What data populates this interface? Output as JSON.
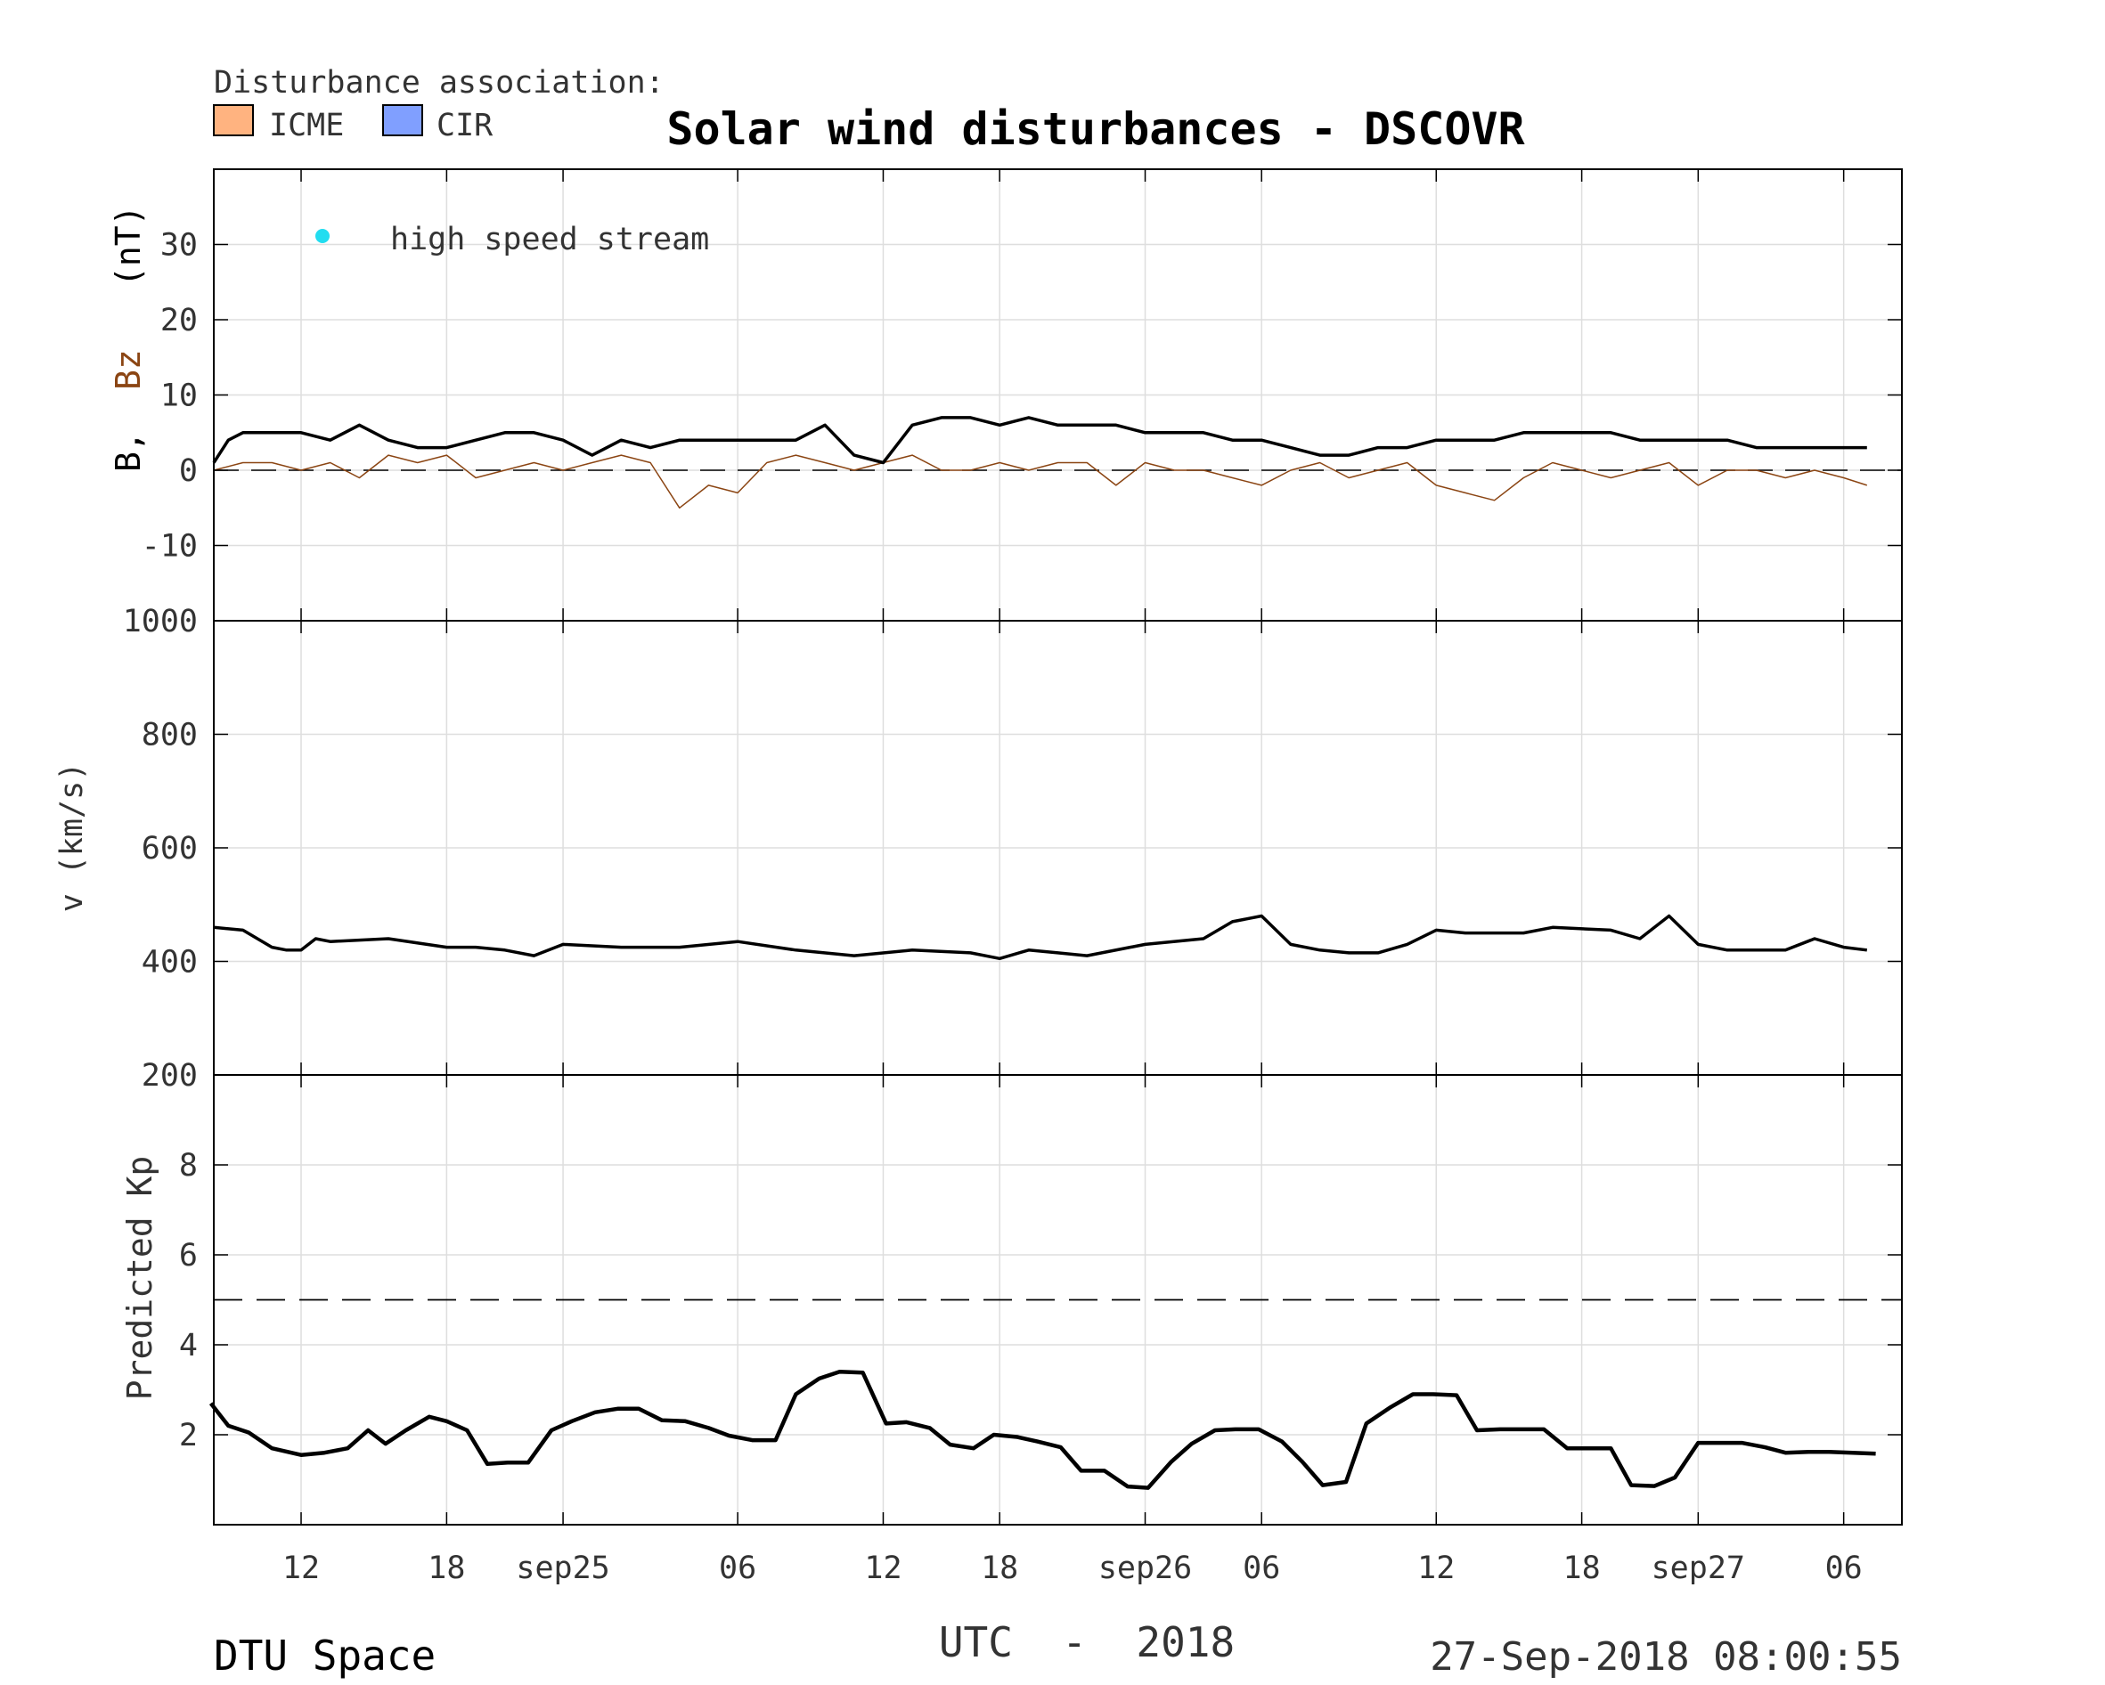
{
  "title": "Solar wind disturbances - DSCOVR",
  "legend": {
    "heading": "Disturbance association:",
    "items": [
      {
        "label": "ICME",
        "color": "#ffb380"
      },
      {
        "label": "CIR",
        "color": "#809fff"
      }
    ]
  },
  "hss_label": "high speed stream",
  "hss_color": "#22ddf0",
  "footer": {
    "left": "DTU Space",
    "center": "UTC  -  2018",
    "right": "27-Sep-2018 08:00:55"
  },
  "chart_data": [
    {
      "type": "line",
      "panel": "magnetic-field",
      "ylabel_b": "B,",
      "ylabel_bz": "Bz",
      "ylabel_unit": "(nT)",
      "bz_color": "#8b4513",
      "ylim": [
        -20,
        40
      ],
      "yticks": [
        -10,
        0,
        10,
        20,
        30
      ],
      "ytick_labels": [
        "-10",
        "0",
        "10",
        "20",
        "30"
      ],
      "grid": true,
      "reference_line": 0,
      "series": [
        {
          "name": "B",
          "x_hours": [
            0,
            0.5,
            1,
            2,
            3,
            4,
            5,
            6,
            7,
            8,
            9,
            10,
            11,
            12,
            13,
            14,
            15,
            16,
            17,
            18,
            19,
            20,
            21,
            22,
            23,
            24,
            25,
            26,
            27,
            28,
            29,
            30,
            31,
            32,
            33,
            34,
            35,
            36,
            37,
            38,
            39,
            40,
            41,
            42,
            43,
            44,
            45,
            46,
            47,
            48,
            49,
            50,
            51,
            52,
            53,
            54,
            55,
            56,
            56.8
          ],
          "values": [
            1,
            4,
            5,
            5,
            5,
            4,
            6,
            4,
            3,
            3,
            4,
            5,
            5,
            4,
            2,
            4,
            3,
            4,
            4,
            4,
            4,
            4,
            6,
            2,
            1,
            6,
            7,
            7,
            6,
            7,
            6,
            6,
            6,
            5,
            5,
            5,
            4,
            4,
            3,
            2,
            2,
            3,
            3,
            4,
            4,
            4,
            5,
            5,
            5,
            5,
            4,
            4,
            4,
            4,
            3,
            3,
            3,
            3,
            3
          ]
        },
        {
          "name": "Bz",
          "x_hours": [
            0,
            1,
            2,
            3,
            4,
            5,
            6,
            7,
            8,
            9,
            10,
            11,
            12,
            13,
            14,
            15,
            16,
            17,
            18,
            19,
            20,
            21,
            22,
            23,
            24,
            25,
            26,
            27,
            28,
            29,
            30,
            31,
            32,
            33,
            34,
            35,
            36,
            37,
            38,
            39,
            40,
            41,
            42,
            43,
            44,
            45,
            46,
            47,
            48,
            49,
            50,
            51,
            52,
            53,
            54,
            55,
            56,
            56.8
          ],
          "values": [
            0,
            1,
            1,
            0,
            1,
            -1,
            2,
            1,
            2,
            -1,
            0,
            1,
            0,
            1,
            2,
            1,
            -5,
            -2,
            -3,
            1,
            2,
            1,
            0,
            1,
            2,
            0,
            0,
            1,
            0,
            1,
            1,
            -2,
            1,
            0,
            0,
            -1,
            -2,
            0,
            1,
            -1,
            0,
            1,
            -2,
            -3,
            -4,
            -1,
            1,
            0,
            -1,
            0,
            1,
            -2,
            0,
            0,
            -1,
            0,
            -1,
            -2
          ]
        }
      ]
    },
    {
      "type": "line",
      "panel": "solar-wind-speed",
      "ylabel": "v  (km/s)",
      "ylim": [
        200,
        1000
      ],
      "yticks": [
        200,
        400,
        600,
        800,
        1000
      ],
      "ytick_labels": [
        "200",
        "400",
        "600",
        "800",
        "1000"
      ],
      "grid": true,
      "series": [
        {
          "name": "v",
          "x_hours": [
            0,
            1,
            2,
            2.5,
            3,
            3.5,
            4,
            6,
            8,
            9,
            10,
            11,
            12,
            14,
            16,
            18,
            20,
            22,
            24,
            26,
            27,
            28,
            29,
            30,
            32,
            34,
            35,
            36,
            37,
            38,
            39,
            40,
            41,
            42,
            43,
            44,
            45,
            46,
            48,
            49,
            50,
            51,
            52,
            53,
            54,
            55,
            56,
            56.8
          ],
          "values": [
            460,
            455,
            425,
            420,
            420,
            440,
            435,
            440,
            425,
            425,
            420,
            410,
            430,
            425,
            425,
            435,
            420,
            410,
            420,
            415,
            405,
            420,
            415,
            410,
            430,
            440,
            470,
            480,
            430,
            420,
            415,
            415,
            430,
            455,
            450,
            450,
            450,
            460,
            455,
            440,
            480,
            430,
            420,
            420,
            420,
            440,
            425,
            420
          ]
        }
      ]
    },
    {
      "type": "line",
      "panel": "predicted-kp",
      "ylabel": "Predicted Kp",
      "ylim": [
        0,
        10
      ],
      "yticks": [
        2,
        4,
        6,
        8
      ],
      "ytick_labels": [
        "2",
        "4",
        "6",
        "8"
      ],
      "grid": true,
      "threshold": 5,
      "series": [
        {
          "name": "Kp",
          "x_hours": [
            -0.1,
            0.5,
            1.2,
            2,
            3,
            3.8,
            4.6,
            5.3,
            5.9,
            6.6,
            7.4,
            8,
            8.7,
            9.4,
            10.1,
            10.8,
            11.6,
            12.3,
            13.1,
            13.9,
            14.6,
            15.4,
            16.2,
            17,
            17.7,
            18.5,
            19.3,
            20,
            20.8,
            21.5,
            22.3,
            23.1,
            23.8,
            24.6,
            25.3,
            26.1,
            26.8,
            27.6,
            28.3,
            29.1,
            29.8,
            30.6,
            31.4,
            32.1,
            32.9,
            33.6,
            34.4,
            35.1,
            35.9,
            36.7,
            37.4,
            38.1,
            38.9,
            39.6,
            40.4,
            41.2,
            41.9,
            42.7,
            43.4,
            44.2,
            44.9,
            45.7,
            46.5,
            47.2,
            48,
            48.7,
            49.5,
            50.2,
            51,
            51.8,
            52.5,
            53.3,
            54,
            54.8,
            55.5,
            56.3,
            57.1
          ],
          "values": [
            2.7,
            2.2,
            2.05,
            1.7,
            1.55,
            1.6,
            1.7,
            2.1,
            1.8,
            2.1,
            2.4,
            2.3,
            2.1,
            1.35,
            1.38,
            1.38,
            2.1,
            2.3,
            2.5,
            2.58,
            2.58,
            2.32,
            2.3,
            2.15,
            1.98,
            1.88,
            1.88,
            2.9,
            3.25,
            3.4,
            3.38,
            2.25,
            2.28,
            2.15,
            1.78,
            1.7,
            2.0,
            1.95,
            1.85,
            1.72,
            1.2,
            1.2,
            0.85,
            0.82,
            1.4,
            1.8,
            2.1,
            2.12,
            2.12,
            1.85,
            1.4,
            0.88,
            0.95,
            2.25,
            2.6,
            2.9,
            2.9,
            2.88,
            2.1,
            2.12,
            2.12,
            2.12,
            1.7,
            1.7,
            1.7,
            0.88,
            0.86,
            1.05,
            1.82,
            1.82,
            1.82,
            1.72,
            1.6,
            1.62,
            1.62,
            1.6,
            1.58
          ]
        }
      ]
    }
  ],
  "x_axis": {
    "range_hours": [
      0,
      58
    ],
    "tick_hours": [
      3,
      8,
      12,
      18,
      23,
      27,
      32,
      36,
      42,
      47,
      51,
      56
    ],
    "tick_labels": [
      "12",
      "18",
      "sep25",
      "06",
      "12",
      "18",
      "sep26",
      "06",
      "12",
      "18",
      "sep27",
      "06"
    ]
  }
}
